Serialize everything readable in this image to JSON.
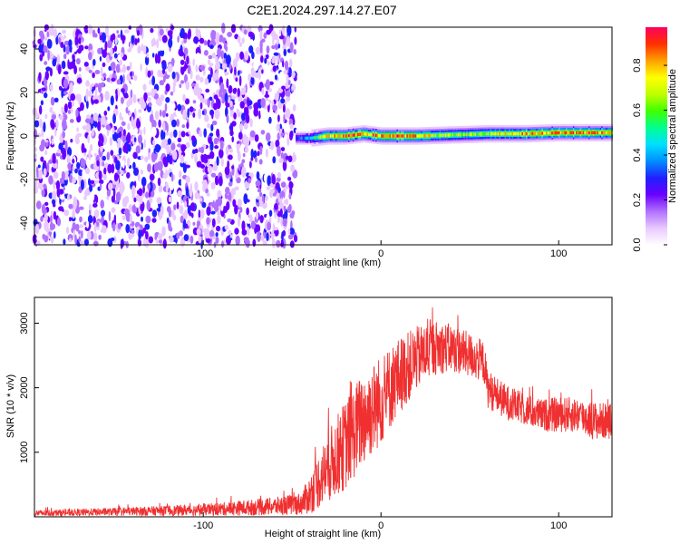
{
  "title": "C2E1.2024.297.14.27.E07",
  "chart_data": [
    {
      "type": "heatmap",
      "xlabel": "Height of straight line (km)",
      "ylabel": "Frequency (Hz)",
      "xlim": [
        -195,
        130
      ],
      "ylim": [
        -50,
        50
      ],
      "xticks": [
        -100,
        0,
        100
      ],
      "xtick_labels": [
        "-100",
        "0",
        "100"
      ],
      "yticks": [
        -40,
        -20,
        0,
        20,
        40
      ],
      "ytick_labels": [
        "-40",
        "-20",
        "0",
        "20",
        "40"
      ],
      "colorbar": {
        "label": "Normalized spectral amplitude",
        "range": [
          0,
          0.97
        ],
        "ticks": [
          0.0,
          0.2,
          0.4,
          0.6,
          0.8
        ],
        "tick_labels": [
          "0.0",
          "0.2",
          "0.4",
          "0.6",
          "0.8"
        ],
        "colors": [
          "#ffffff",
          "#e9c8ff",
          "#b070ff",
          "#6a00ff",
          "#2020ff",
          "#0090ff",
          "#00e0ff",
          "#00ff90",
          "#40ff00",
          "#c0ff00",
          "#ffff00",
          "#ffa000",
          "#ff3000",
          "#ff0060"
        ]
      },
      "noise_region_x": [
        -195,
        -48
      ],
      "signal_band": {
        "x": [
          -48,
          -40,
          -30,
          -20,
          -10,
          0,
          20,
          40,
          60,
          80,
          100,
          130
        ],
        "center_freq": [
          -1,
          -1,
          0,
          0,
          1,
          0,
          0,
          0.5,
          1,
          1,
          1.5,
          1.5
        ],
        "peak_amplitude": [
          0.3,
          0.5,
          0.85,
          0.95,
          0.9,
          0.95,
          0.9,
          0.7,
          0.75,
          0.9,
          0.95,
          0.95
        ]
      },
      "grid": false
    },
    {
      "type": "line",
      "xlabel": "Height of straight line (km)",
      "ylabel": "SNR (10 * v/v)",
      "xlim": [
        -195,
        130
      ],
      "ylim": [
        0,
        3400
      ],
      "xticks": [
        -100,
        0,
        100
      ],
      "xtick_labels": [
        "-100",
        "0",
        "100"
      ],
      "yticks": [
        1000,
        2000,
        3000
      ],
      "ytick_labels": [
        "1000",
        "2000",
        "3000"
      ],
      "line_color": "#f03030",
      "envelope": {
        "x": [
          -195,
          -150,
          -100,
          -60,
          -45,
          -40,
          -30,
          -20,
          -10,
          0,
          10,
          20,
          30,
          40,
          50,
          58,
          60,
          70,
          80,
          90,
          100,
          110,
          120,
          130
        ],
        "base": [
          40,
          60,
          80,
          120,
          150,
          250,
          600,
          900,
          1300,
          1600,
          2000,
          2300,
          2500,
          2500,
          2400,
          2300,
          1900,
          1700,
          1600,
          1500,
          1500,
          1500,
          1400,
          1400
        ],
        "spread": [
          100,
          120,
          180,
          280,
          350,
          600,
          1100,
          1400,
          1500,
          1400,
          1200,
          1000,
          850,
          750,
          700,
          650,
          600,
          550,
          500,
          500,
          550,
          550,
          600,
          550
        ]
      },
      "grid": false
    }
  ]
}
